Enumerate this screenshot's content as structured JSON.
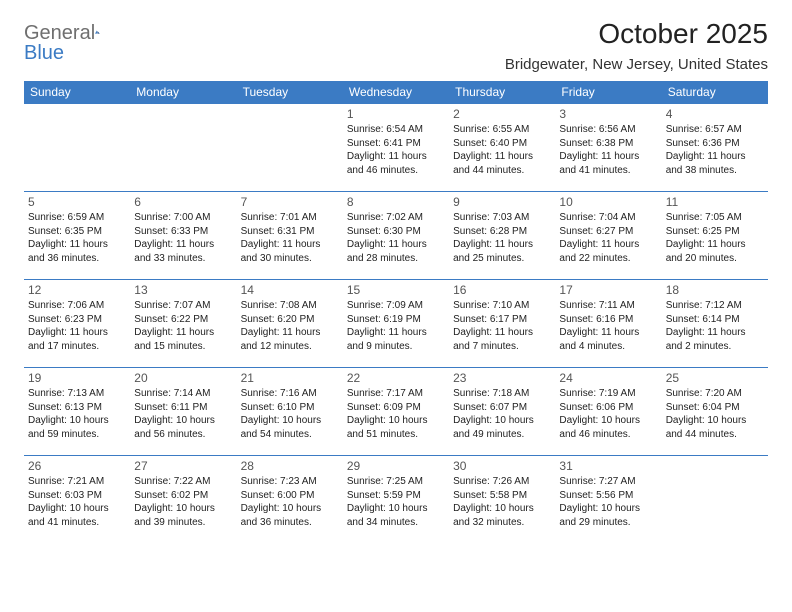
{
  "logo": {
    "text1": "General",
    "text2": "Blue"
  },
  "title": "October 2025",
  "location": "Bridgewater, New Jersey, United States",
  "colors": {
    "header_bg": "#3b7bc4",
    "header_text": "#ffffff",
    "border": "#3b7bc4",
    "logo_grey": "#6f6f6f",
    "logo_blue": "#3b7bc4",
    "background": "#ffffff",
    "text": "#222222",
    "daynum": "#555555"
  },
  "dayHeaders": [
    "Sunday",
    "Monday",
    "Tuesday",
    "Wednesday",
    "Thursday",
    "Friday",
    "Saturday"
  ],
  "weeks": [
    [
      null,
      null,
      null,
      {
        "n": "1",
        "sr": "6:54 AM",
        "ss": "6:41 PM",
        "dl": "Daylight: 11 hours and 46 minutes."
      },
      {
        "n": "2",
        "sr": "6:55 AM",
        "ss": "6:40 PM",
        "dl": "Daylight: 11 hours and 44 minutes."
      },
      {
        "n": "3",
        "sr": "6:56 AM",
        "ss": "6:38 PM",
        "dl": "Daylight: 11 hours and 41 minutes."
      },
      {
        "n": "4",
        "sr": "6:57 AM",
        "ss": "6:36 PM",
        "dl": "Daylight: 11 hours and 38 minutes."
      }
    ],
    [
      {
        "n": "5",
        "sr": "6:59 AM",
        "ss": "6:35 PM",
        "dl": "Daylight: 11 hours and 36 minutes."
      },
      {
        "n": "6",
        "sr": "7:00 AM",
        "ss": "6:33 PM",
        "dl": "Daylight: 11 hours and 33 minutes."
      },
      {
        "n": "7",
        "sr": "7:01 AM",
        "ss": "6:31 PM",
        "dl": "Daylight: 11 hours and 30 minutes."
      },
      {
        "n": "8",
        "sr": "7:02 AM",
        "ss": "6:30 PM",
        "dl": "Daylight: 11 hours and 28 minutes."
      },
      {
        "n": "9",
        "sr": "7:03 AM",
        "ss": "6:28 PM",
        "dl": "Daylight: 11 hours and 25 minutes."
      },
      {
        "n": "10",
        "sr": "7:04 AM",
        "ss": "6:27 PM",
        "dl": "Daylight: 11 hours and 22 minutes."
      },
      {
        "n": "11",
        "sr": "7:05 AM",
        "ss": "6:25 PM",
        "dl": "Daylight: 11 hours and 20 minutes."
      }
    ],
    [
      {
        "n": "12",
        "sr": "7:06 AM",
        "ss": "6:23 PM",
        "dl": "Daylight: 11 hours and 17 minutes."
      },
      {
        "n": "13",
        "sr": "7:07 AM",
        "ss": "6:22 PM",
        "dl": "Daylight: 11 hours and 15 minutes."
      },
      {
        "n": "14",
        "sr": "7:08 AM",
        "ss": "6:20 PM",
        "dl": "Daylight: 11 hours and 12 minutes."
      },
      {
        "n": "15",
        "sr": "7:09 AM",
        "ss": "6:19 PM",
        "dl": "Daylight: 11 hours and 9 minutes."
      },
      {
        "n": "16",
        "sr": "7:10 AM",
        "ss": "6:17 PM",
        "dl": "Daylight: 11 hours and 7 minutes."
      },
      {
        "n": "17",
        "sr": "7:11 AM",
        "ss": "6:16 PM",
        "dl": "Daylight: 11 hours and 4 minutes."
      },
      {
        "n": "18",
        "sr": "7:12 AM",
        "ss": "6:14 PM",
        "dl": "Daylight: 11 hours and 2 minutes."
      }
    ],
    [
      {
        "n": "19",
        "sr": "7:13 AM",
        "ss": "6:13 PM",
        "dl": "Daylight: 10 hours and 59 minutes."
      },
      {
        "n": "20",
        "sr": "7:14 AM",
        "ss": "6:11 PM",
        "dl": "Daylight: 10 hours and 56 minutes."
      },
      {
        "n": "21",
        "sr": "7:16 AM",
        "ss": "6:10 PM",
        "dl": "Daylight: 10 hours and 54 minutes."
      },
      {
        "n": "22",
        "sr": "7:17 AM",
        "ss": "6:09 PM",
        "dl": "Daylight: 10 hours and 51 minutes."
      },
      {
        "n": "23",
        "sr": "7:18 AM",
        "ss": "6:07 PM",
        "dl": "Daylight: 10 hours and 49 minutes."
      },
      {
        "n": "24",
        "sr": "7:19 AM",
        "ss": "6:06 PM",
        "dl": "Daylight: 10 hours and 46 minutes."
      },
      {
        "n": "25",
        "sr": "7:20 AM",
        "ss": "6:04 PM",
        "dl": "Daylight: 10 hours and 44 minutes."
      }
    ],
    [
      {
        "n": "26",
        "sr": "7:21 AM",
        "ss": "6:03 PM",
        "dl": "Daylight: 10 hours and 41 minutes."
      },
      {
        "n": "27",
        "sr": "7:22 AM",
        "ss": "6:02 PM",
        "dl": "Daylight: 10 hours and 39 minutes."
      },
      {
        "n": "28",
        "sr": "7:23 AM",
        "ss": "6:00 PM",
        "dl": "Daylight: 10 hours and 36 minutes."
      },
      {
        "n": "29",
        "sr": "7:25 AM",
        "ss": "5:59 PM",
        "dl": "Daylight: 10 hours and 34 minutes."
      },
      {
        "n": "30",
        "sr": "7:26 AM",
        "ss": "5:58 PM",
        "dl": "Daylight: 10 hours and 32 minutes."
      },
      {
        "n": "31",
        "sr": "7:27 AM",
        "ss": "5:56 PM",
        "dl": "Daylight: 10 hours and 29 minutes."
      },
      null
    ]
  ]
}
